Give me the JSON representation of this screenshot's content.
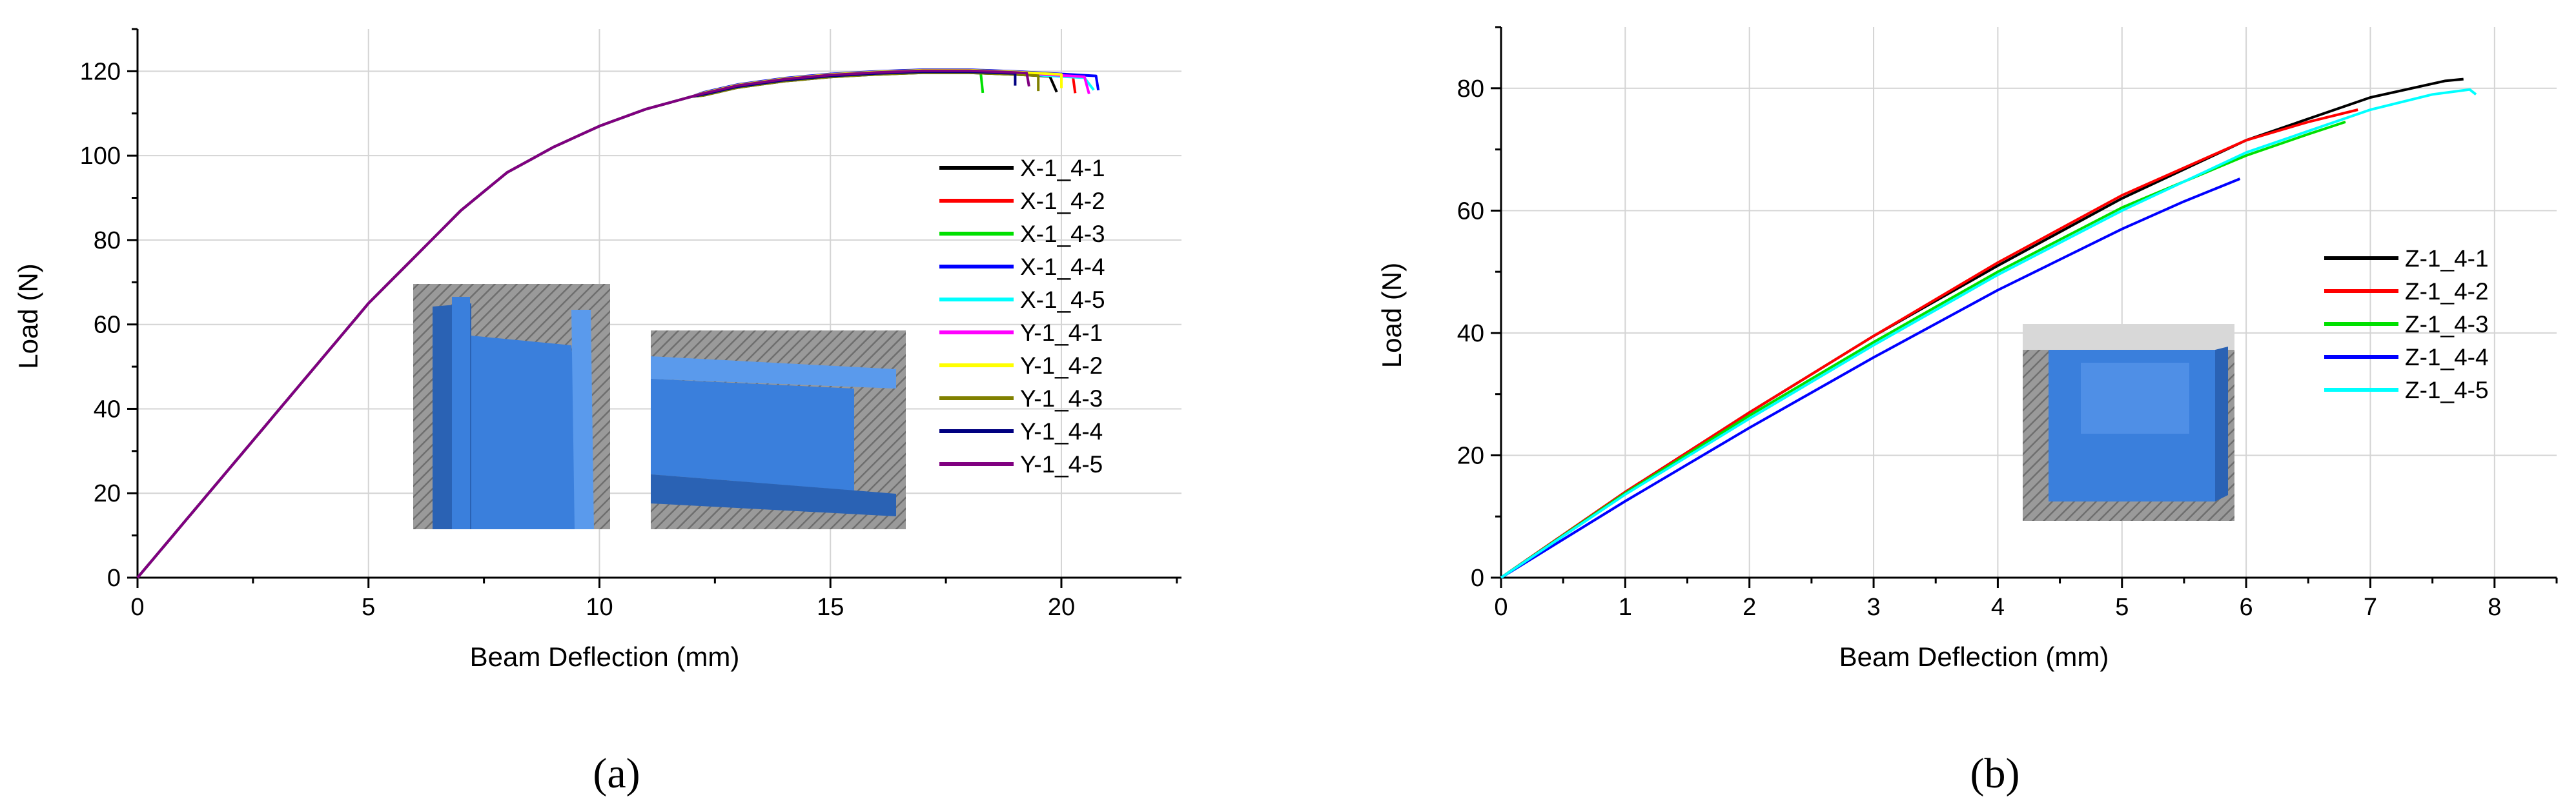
{
  "chart_data": [
    {
      "type": "line",
      "panel_label": "(a)",
      "xlabel": "Beam Deflection (mm)",
      "ylabel": "Load (N)",
      "xlim": [
        0,
        22.6
      ],
      "ylim": [
        0,
        130
      ],
      "xticks": [
        0,
        5,
        10,
        15,
        20
      ],
      "yticks": [
        0,
        20,
        40,
        60,
        80,
        100,
        120
      ],
      "grid": true,
      "legend_position": "right",
      "series": [
        {
          "name": "X-1_4-1",
          "color": "#000000",
          "end_x": 19.9,
          "end_drop": 4
        },
        {
          "name": "X-1_4-2",
          "color": "#ff0000",
          "end_x": 20.3,
          "end_drop": 4
        },
        {
          "name": "X-1_4-3",
          "color": "#00e000",
          "end_x": 18.3,
          "end_drop": 5
        },
        {
          "name": "X-1_4-4",
          "color": "#0000ff",
          "end_x": 20.8,
          "end_drop": 3
        },
        {
          "name": "X-1_4-5",
          "color": "#00ffff",
          "end_x": 20.7,
          "end_drop": 3
        },
        {
          "name": "Y-1_4-1",
          "color": "#ff00ff",
          "end_x": 20.6,
          "end_drop": 4
        },
        {
          "name": "Y-1_4-2",
          "color": "#ffff00",
          "end_x": 20.0,
          "end_drop": 3
        },
        {
          "name": "Y-1_4-3",
          "color": "#808000",
          "end_x": 19.5,
          "end_drop": 4
        },
        {
          "name": "Y-1_4-4",
          "color": "#000080",
          "end_x": 19.0,
          "end_drop": 3
        },
        {
          "name": "Y-1_4-5",
          "color": "#800080",
          "end_x": 19.3,
          "end_drop": 3
        }
      ],
      "shared_curve": {
        "x": [
          0,
          1,
          2,
          3,
          4,
          5,
          6,
          7,
          8,
          9,
          10,
          11,
          12,
          13,
          14,
          15,
          16,
          17,
          18,
          19,
          20,
          20.8
        ],
        "y": [
          0,
          13,
          26,
          39,
          52,
          65,
          76,
          87,
          96,
          102,
          107,
          111,
          114,
          116.5,
          118,
          119,
          119.6,
          120,
          120,
          119.6,
          119,
          118.5
        ]
      },
      "insets": [
        "inset-x-specimen",
        "inset-y-specimen"
      ]
    },
    {
      "type": "line",
      "panel_label": "(b)",
      "xlabel": "Beam Deflection (mm)",
      "ylabel": "Load (N)",
      "xlim": [
        0,
        8.5
      ],
      "ylim": [
        0,
        90
      ],
      "xticks": [
        0,
        1,
        2,
        3,
        4,
        5,
        6,
        7,
        8
      ],
      "yticks": [
        0,
        20,
        40,
        60,
        80
      ],
      "grid": true,
      "legend_position": "right",
      "series": [
        {
          "name": "Z-1_4-1",
          "color": "#000000",
          "x": [
            0,
            1,
            2,
            3,
            4,
            5,
            6,
            7,
            7.6,
            7.75
          ],
          "y": [
            0,
            14,
            27,
            39.5,
            51,
            62,
            71.5,
            78.5,
            81.2,
            81.5
          ]
        },
        {
          "name": "Z-1_4-2",
          "color": "#ff0000",
          "x": [
            0,
            1,
            2,
            3,
            4,
            5,
            6,
            6.5,
            6.9
          ],
          "y": [
            0,
            14,
            27,
            39.5,
            51.5,
            62.5,
            71.5,
            74.5,
            76.5
          ]
        },
        {
          "name": "Z-1_4-3",
          "color": "#00e000",
          "x": [
            0,
            1,
            2,
            3,
            4,
            5,
            6,
            6.5,
            6.8
          ],
          "y": [
            0,
            13.8,
            26.5,
            38.5,
            50,
            60.5,
            69,
            72.5,
            74.5
          ]
        },
        {
          "name": "Z-1_4-4",
          "color": "#0000ff",
          "x": [
            0,
            1,
            2,
            3,
            4,
            5,
            5.5,
            5.95
          ],
          "y": [
            0,
            12.5,
            24.5,
            36,
            47,
            57,
            61.5,
            65.2
          ]
        },
        {
          "name": "Z-1_4-5",
          "color": "#00ffff",
          "x": [
            0,
            1,
            2,
            3,
            4,
            5,
            6,
            7,
            7.5,
            7.8,
            7.85
          ],
          "y": [
            0,
            13.6,
            26,
            38,
            49.5,
            60,
            69.5,
            76.5,
            79,
            79.8,
            79
          ]
        }
      ],
      "insets": [
        "inset-z-specimen"
      ]
    }
  ]
}
